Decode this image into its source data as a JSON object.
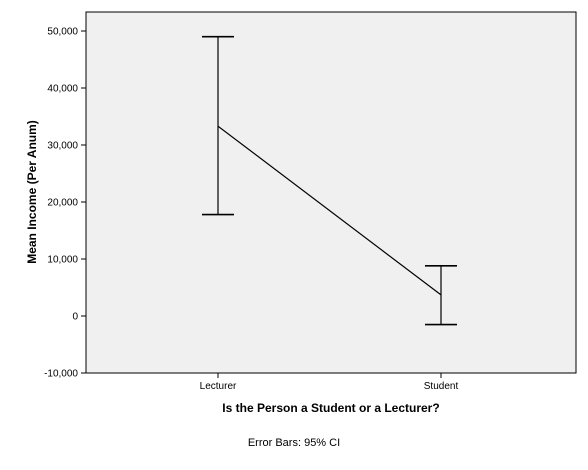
{
  "chart_data": {
    "type": "line",
    "title": "",
    "xlabel": "Is the Person a Student or a Lecturer?",
    "ylabel": "Mean Income (Per Anum)",
    "categories": [
      "Lecturer",
      "Student"
    ],
    "means": [
      33300,
      3700
    ],
    "ci_lower": [
      17800,
      -1500
    ],
    "ci_upper": [
      49000,
      8800
    ],
    "ylim": [
      -10000,
      50000
    ],
    "yticks": [
      -10000,
      0,
      10000,
      20000,
      30000,
      40000,
      50000
    ],
    "ytick_labels": [
      "-10,000",
      "0",
      "10,000",
      "20,000",
      "30,000",
      "40,000",
      "50,000"
    ],
    "grid": false,
    "plot_background": "#f0f0f0",
    "line_color": "#000000",
    "footnote": "Error Bars: 95% CI"
  }
}
